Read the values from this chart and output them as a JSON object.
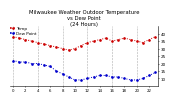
{
  "title": "Milwaukee Weather Outdoor Temperature\nvs Dew Point\n(24 Hours)",
  "title_fontsize": 3.8,
  "temp_color": "#cc0000",
  "dew_color": "#0000cc",
  "legend_temp": "Temp",
  "legend_dew": "Dew Point",
  "temp_values": [
    38,
    37,
    36,
    35,
    34,
    33,
    32,
    31,
    30,
    29,
    30,
    32,
    34,
    35,
    36,
    37,
    35,
    36,
    37,
    36,
    35,
    34,
    36,
    38
  ],
  "dew_values": [
    22,
    21,
    21,
    20,
    20,
    19,
    18,
    15,
    13,
    11,
    9,
    9,
    10,
    11,
    12,
    12,
    11,
    11,
    10,
    9,
    9,
    10,
    12,
    14
  ],
  "ylim": [
    5,
    45
  ],
  "ytick_vals": [
    10,
    15,
    20,
    25,
    30,
    35,
    40
  ],
  "ytick_fontsize": 3.0,
  "xtick_fontsize": 2.8,
  "background_color": "#ffffff",
  "grid_color": "#999999",
  "grid_positions": [
    0,
    4,
    8,
    12,
    16,
    20
  ],
  "legend_fontsize": 3.0,
  "legend_line_color": "#cc0000",
  "legend_line2_color": "#0000cc",
  "marker_size": 1.8,
  "line_width": 0.7
}
